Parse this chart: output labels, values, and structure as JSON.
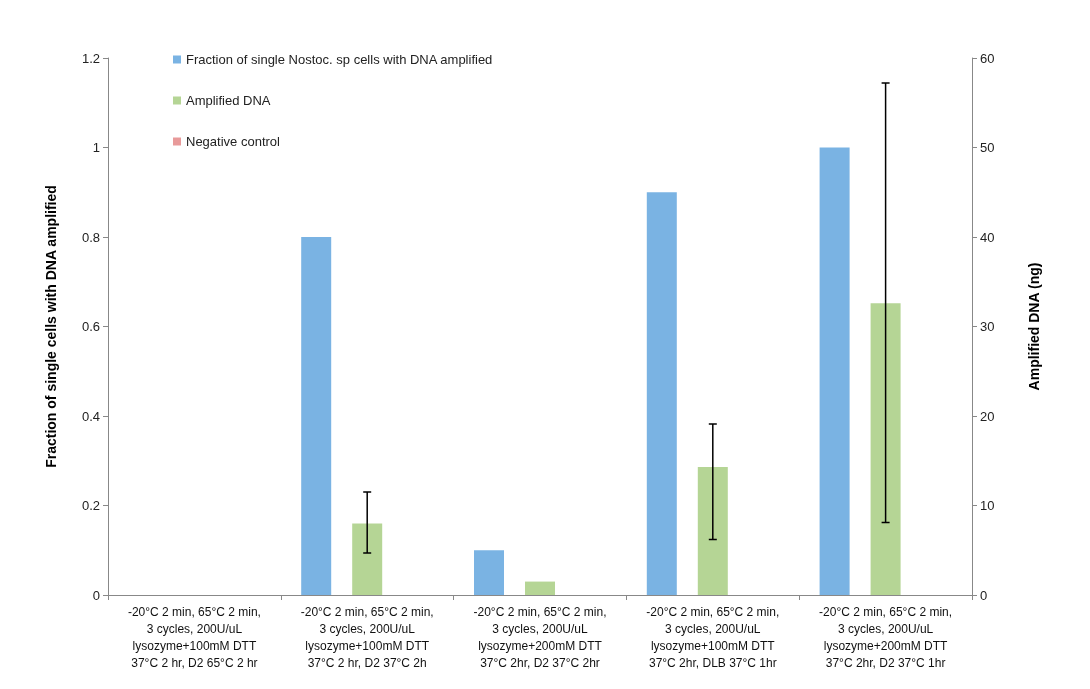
{
  "chart_data": {
    "type": "bar",
    "categories": [
      "-20°C 2 min, 65°C 2 min,\n3 cycles, 200U/uL\nlysozyme+100mM DTT\n37°C 2 hr, D2 65°C 2 hr",
      "-20°C 2 min, 65°C 2 min,\n3 cycles, 200U/uL\nlysozyme+100mM DTT\n37°C 2 hr, D2 37°C 2h",
      "-20°C 2 min, 65°C 2 min,\n3 cycles, 200U/uL\nlysozyme+200mM DTT\n37°C 2hr, D2 37°C 2hr",
      "-20°C 2 min, 65°C 2 min,\n3 cycles, 200U/uL\nlysozyme+100mM DTT\n37°C 2hr, DLB 37°C 1hr",
      "-20°C 2 min, 65°C 2 min,\n3 cycles, 200U/uL\nlysozyme+200mM DTT\n37°C 2hr, D2 37°C 1hr"
    ],
    "series": [
      {
        "name": "Fraction of single Nostoc. sp cells with DNA amplified",
        "color": "#7ab3e3",
        "values": [
          0,
          0.8,
          0.1,
          0.9,
          1.0
        ]
      },
      {
        "name": "Amplified DNA",
        "color": "#b5d595",
        "axis": "y2",
        "values": [
          null,
          8.0,
          1.5,
          14.3,
          32.6
        ],
        "errors": [
          null,
          [
            4.7,
            11.5
          ],
          null,
          [
            6.2,
            19.1
          ],
          [
            8.1,
            57.2
          ]
        ]
      },
      {
        "name": "Negative control",
        "color": "#e89a9a",
        "axis": "y2",
        "values": [
          null,
          null,
          null,
          null,
          null
        ]
      }
    ],
    "ylabel": "Fraction of single cells with DNA amplified",
    "y2label": "Amplified DNA (ng)",
    "ylim": [
      0,
      1.2
    ],
    "yticks": [
      0,
      0.2,
      0.4,
      0.6,
      0.8,
      1,
      1.2
    ],
    "y2lim": [
      0,
      60
    ],
    "y2ticks": [
      0,
      10,
      20,
      30,
      40,
      50,
      60
    ],
    "grid": false,
    "legend": "top left"
  }
}
